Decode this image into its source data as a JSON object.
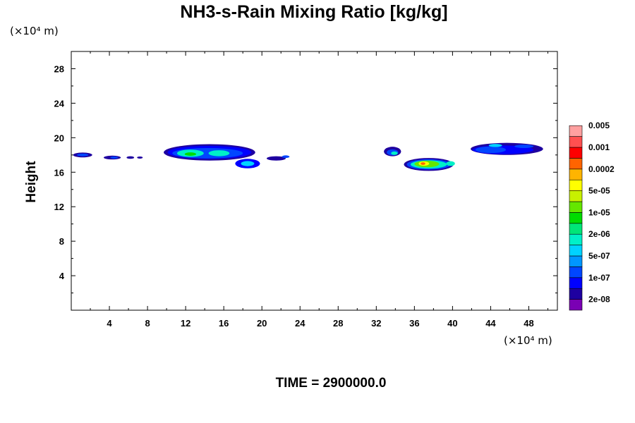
{
  "chart_data": {
    "type": "heatmap",
    "title": "NH3-s-Rain Mixing Ratio [kg/kg]",
    "ylabel": "Height",
    "x_unit": "(×10⁴ m)",
    "y_unit": "(×10⁴ m)",
    "time_label": "TIME = 2900000.0",
    "xlim": [
      0,
      51
    ],
    "ylim": [
      0,
      30
    ],
    "x_ticks": [
      4,
      8,
      12,
      16,
      20,
      24,
      28,
      32,
      36,
      40,
      44,
      48
    ],
    "y_ticks": [
      4,
      8,
      12,
      16,
      20,
      24,
      28
    ],
    "colorbar": {
      "colors": [
        "#7a00b4",
        "#1e00a0",
        "#0000ff",
        "#0046ff",
        "#0096ff",
        "#00d2ff",
        "#00f0c8",
        "#00e678",
        "#00dc00",
        "#64e600",
        "#c8f000",
        "#ffff00",
        "#ffb400",
        "#ff6400",
        "#ff0000",
        "#ff5050",
        "#ffa0a0"
      ],
      "labels": [
        "2e-08",
        "1e-07",
        "5e-07",
        "2e-06",
        "1e-05",
        "5e-05",
        "0.0002",
        "0.001",
        "0.005"
      ]
    },
    "cells": [
      {
        "x": 1.2,
        "y": 18.0,
        "rx": 1.0,
        "ry": 0.28,
        "level": 1
      },
      {
        "x": 1.2,
        "y": 18.0,
        "rx": 0.6,
        "ry": 0.16,
        "level": 3
      },
      {
        "x": 4.3,
        "y": 17.7,
        "rx": 0.9,
        "ry": 0.22,
        "level": 1
      },
      {
        "x": 4.5,
        "y": 17.7,
        "rx": 0.4,
        "ry": 0.12,
        "level": 3
      },
      {
        "x": 6.2,
        "y": 17.7,
        "rx": 0.4,
        "ry": 0.15,
        "level": 1
      },
      {
        "x": 7.2,
        "y": 17.7,
        "rx": 0.3,
        "ry": 0.12,
        "level": 1
      },
      {
        "x": 14.5,
        "y": 18.3,
        "rx": 4.8,
        "ry": 0.95,
        "level": 1
      },
      {
        "x": 14.5,
        "y": 18.3,
        "rx": 4.4,
        "ry": 0.75,
        "level": 2
      },
      {
        "x": 14.3,
        "y": 18.2,
        "rx": 3.7,
        "ry": 0.6,
        "level": 3
      },
      {
        "x": 12.5,
        "y": 18.2,
        "rx": 1.4,
        "ry": 0.42,
        "level": 6
      },
      {
        "x": 15.5,
        "y": 18.2,
        "rx": 1.1,
        "ry": 0.35,
        "level": 6
      },
      {
        "x": 12.5,
        "y": 18.1,
        "rx": 0.6,
        "ry": 0.2,
        "level": 8
      },
      {
        "x": 18.5,
        "y": 17.0,
        "rx": 1.3,
        "ry": 0.55,
        "level": 2
      },
      {
        "x": 18.5,
        "y": 17.0,
        "rx": 0.7,
        "ry": 0.3,
        "level": 5
      },
      {
        "x": 21.5,
        "y": 17.6,
        "rx": 1.0,
        "ry": 0.25,
        "level": 1
      },
      {
        "x": 22.5,
        "y": 17.8,
        "rx": 0.4,
        "ry": 0.15,
        "level": 3
      },
      {
        "x": 33.7,
        "y": 18.4,
        "rx": 0.9,
        "ry": 0.55,
        "level": 1
      },
      {
        "x": 33.7,
        "y": 18.3,
        "rx": 0.6,
        "ry": 0.35,
        "level": 3
      },
      {
        "x": 33.9,
        "y": 18.2,
        "rx": 0.35,
        "ry": 0.2,
        "level": 6
      },
      {
        "x": 37.5,
        "y": 16.9,
        "rx": 2.6,
        "ry": 0.75,
        "level": 1
      },
      {
        "x": 37.5,
        "y": 16.9,
        "rx": 2.3,
        "ry": 0.6,
        "level": 3
      },
      {
        "x": 37.5,
        "y": 16.9,
        "rx": 1.9,
        "ry": 0.48,
        "level": 6
      },
      {
        "x": 37.3,
        "y": 16.95,
        "rx": 1.3,
        "ry": 0.38,
        "level": 9
      },
      {
        "x": 37.0,
        "y": 17.0,
        "rx": 0.55,
        "ry": 0.25,
        "level": 11
      },
      {
        "x": 36.9,
        "y": 17.0,
        "rx": 0.25,
        "ry": 0.15,
        "level": 13
      },
      {
        "x": 39.8,
        "y": 17.0,
        "rx": 0.45,
        "ry": 0.28,
        "level": 6
      },
      {
        "x": 45.7,
        "y": 18.7,
        "rx": 3.8,
        "ry": 0.7,
        "level": 1
      },
      {
        "x": 45.3,
        "y": 18.6,
        "rx": 3.2,
        "ry": 0.5,
        "level": 2
      },
      {
        "x": 44.0,
        "y": 18.6,
        "rx": 1.6,
        "ry": 0.38,
        "level": 3
      },
      {
        "x": 44.5,
        "y": 19.1,
        "rx": 0.7,
        "ry": 0.18,
        "level": 5
      },
      {
        "x": 47.5,
        "y": 19.0,
        "rx": 1.0,
        "ry": 0.2,
        "level": 3
      }
    ]
  }
}
